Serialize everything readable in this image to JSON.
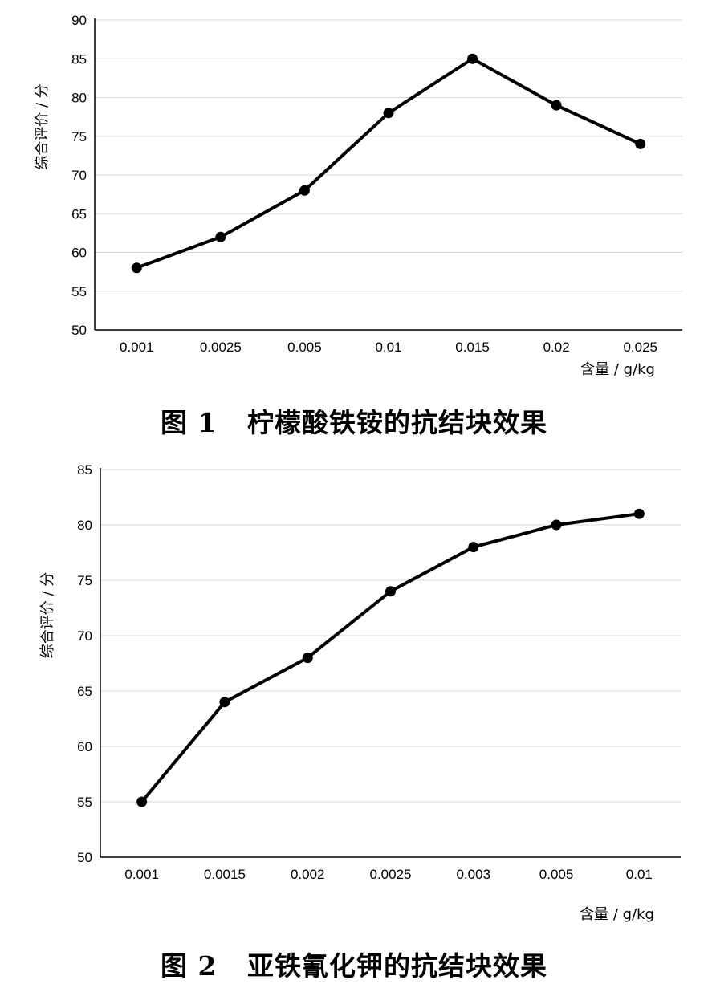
{
  "figures": [
    {
      "caption": "图 1   柠檬酸铁铵的抗结块效果",
      "chart_data": {
        "type": "line",
        "categories": [
          "0.001",
          "0.0025",
          "0.005",
          "0.01",
          "0.015",
          "0.02",
          "0.025"
        ],
        "values": [
          58,
          62,
          68,
          78,
          85,
          79,
          74
        ],
        "title": "",
        "xlabel": "含量 / g/kg",
        "ylabel": "综合评价 / 分",
        "ylim": [
          50,
          90
        ],
        "yticks": [
          50,
          55,
          60,
          65,
          70,
          75,
          80,
          85,
          90
        ],
        "grid": true,
        "line_color": "#000000",
        "grid_color": "#d9d9d9"
      }
    },
    {
      "caption": "图 2   亚铁氰化钾的抗结块效果",
      "chart_data": {
        "type": "line",
        "categories": [
          "0.001",
          "0.0015",
          "0.002",
          "0.0025",
          "0.003",
          "0.005",
          "0.01"
        ],
        "values": [
          55,
          64,
          68,
          74,
          78,
          80,
          81
        ],
        "title": "",
        "xlabel": "含量 / g/kg",
        "ylabel": "综合评价 / 分",
        "ylim": [
          50,
          85
        ],
        "yticks": [
          50,
          55,
          60,
          65,
          70,
          75,
          80,
          85
        ],
        "grid": true,
        "line_color": "#000000",
        "grid_color": "#d9d9d9"
      }
    }
  ]
}
